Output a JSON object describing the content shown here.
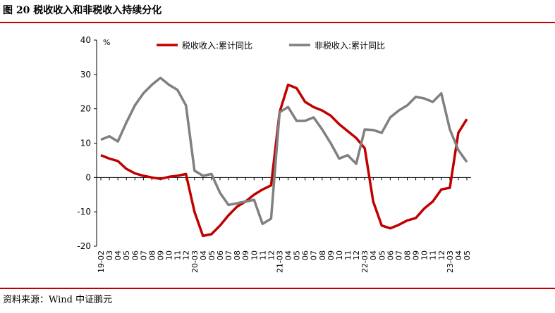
{
  "chart_data": {
    "type": "line",
    "title": "图 20  税收收入和非税收入持续分化",
    "source": "资料来源：Wind   中证鹏元",
    "y_unit": "%",
    "categories": [
      "19-02",
      "03",
      "04",
      "05",
      "06",
      "07",
      "08",
      "09",
      "10",
      "11",
      "12",
      "20-03",
      "04",
      "05",
      "06",
      "07",
      "08",
      "09",
      "10",
      "11",
      "12",
      "21-03",
      "04",
      "05",
      "06",
      "07",
      "08",
      "09",
      "10",
      "11",
      "12",
      "22-03",
      "04",
      "05",
      "06",
      "07",
      "08",
      "09",
      "10",
      "11",
      "12",
      "23-03",
      "04",
      "05"
    ],
    "series": [
      {
        "name": "税收收入:累计同比",
        "color": "#c00000",
        "values": [
          6.5,
          5.5,
          4.8,
          2.5,
          1.2,
          0.5,
          0,
          -0.4,
          0.2,
          0.5,
          1.0,
          -10,
          -17,
          -16.5,
          -14,
          -11,
          -8.5,
          -7,
          -5,
          -3.5,
          -2.3,
          19,
          27,
          26,
          22,
          20.5,
          19.5,
          18,
          15.5,
          13.5,
          11.5,
          8.5,
          -7,
          -14,
          -14.8,
          -13.8,
          -12.5,
          -11.8,
          -9,
          -7,
          -3.5,
          -3,
          13,
          17
        ]
      },
      {
        "name": "非税收入:累计同比",
        "color": "#808080",
        "values": [
          11,
          12,
          10.5,
          16,
          21,
          24.5,
          27,
          29,
          27,
          25.5,
          21,
          2,
          0.5,
          1,
          -4.5,
          -8,
          -7.5,
          -7,
          -6.5,
          -13.5,
          -12,
          19,
          20.5,
          16.5,
          16.5,
          17.5,
          14,
          10,
          5.5,
          6.5,
          4,
          14,
          13.8,
          13,
          17.5,
          19.5,
          21,
          23.5,
          23,
          22,
          24.5,
          14,
          8,
          4.5
        ]
      }
    ],
    "ylim": [
      -20,
      40
    ],
    "yticks": [
      -20,
      -10,
      0,
      10,
      20,
      30,
      40
    ]
  }
}
